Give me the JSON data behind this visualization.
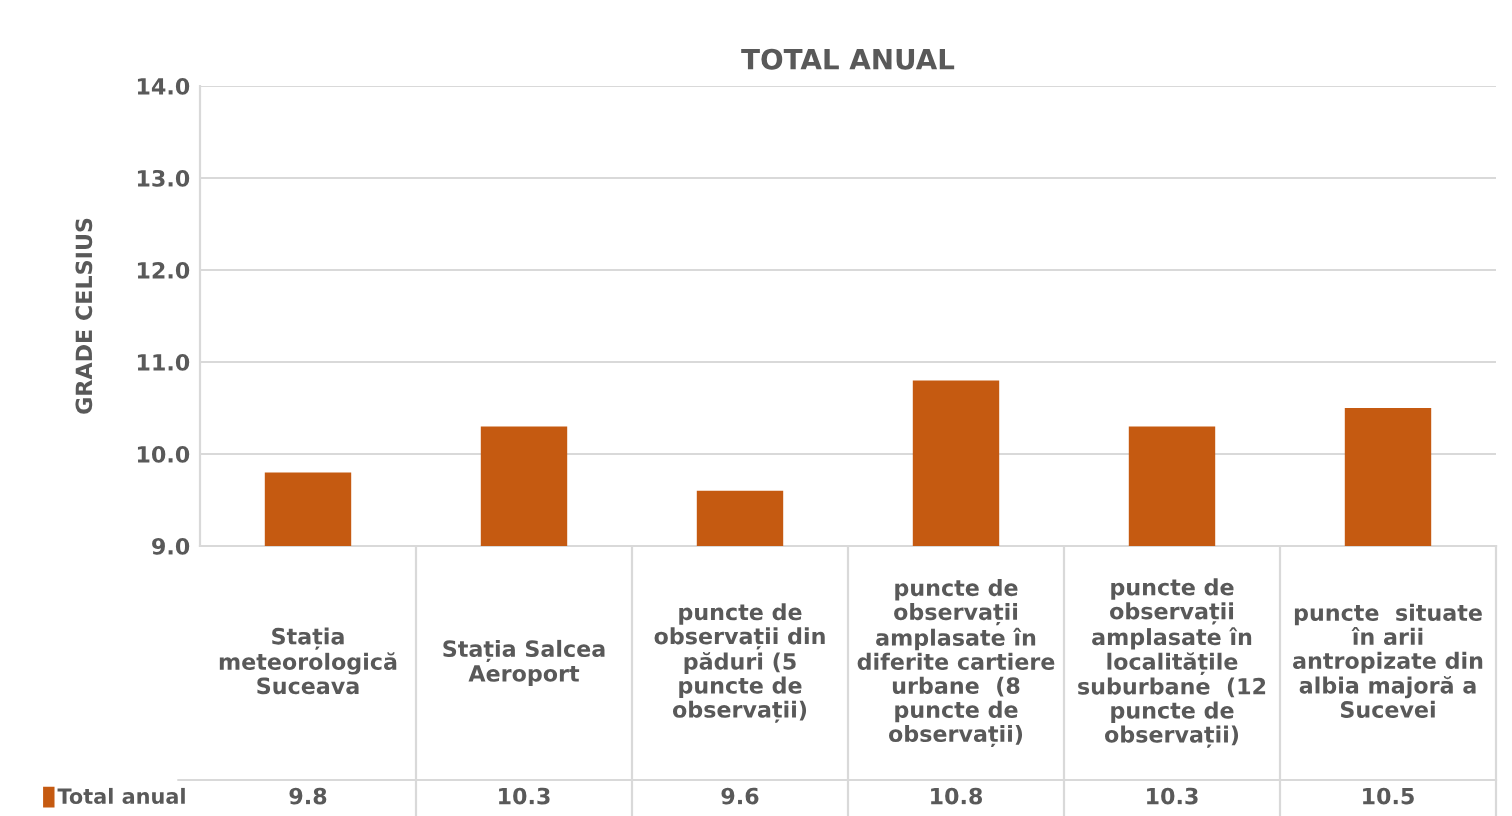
{
  "chart_data": {
    "type": "bar",
    "title": "TOTAL ANUAL",
    "ylabel": "GRADE CELSIUS",
    "categories": [
      "Stația meteorologică Suceava",
      "Stația Salcea Aeroport",
      "puncte de observații din păduri (5 puncte de observații)",
      "puncte de observații amplasate în diferite cartiere urbane  (8 puncte de observații)",
      "puncte de observații amplasate în localitățile suburbane  (12 puncte de observații)",
      "puncte  situate în arii antropizate din albia majoră a Sucevei"
    ],
    "series": [
      {
        "name": "Total anual",
        "color": "#c55a11",
        "values": [
          9.8,
          10.3,
          9.6,
          10.8,
          10.3,
          10.5
        ]
      }
    ],
    "ylim": [
      9.0,
      14.0
    ],
    "yticks": [
      {
        "value": 9,
        "label": "9.0"
      },
      {
        "value": 10,
        "label": "10.0"
      },
      {
        "value": 11,
        "label": "11.0"
      },
      {
        "value": 12,
        "label": "12.0"
      },
      {
        "value": 13,
        "label": "13.0"
      },
      {
        "value": 14,
        "label": "14.0"
      }
    ],
    "grid": "y",
    "data_labels": true
  }
}
